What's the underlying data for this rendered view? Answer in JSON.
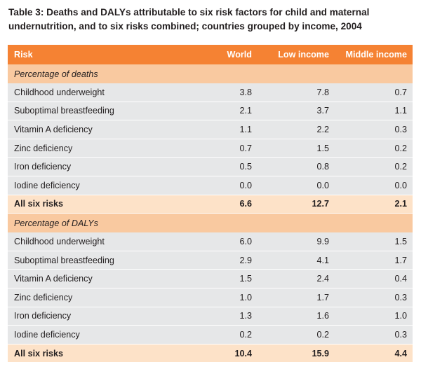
{
  "title": "Table 3: Deaths and DALYs attributable to six risk factors for child and maternal undernutrition, and to six risks combined; countries grouped by income, 2004",
  "columns": [
    "Risk",
    "World",
    "Low income",
    "Middle income"
  ],
  "sections": [
    {
      "label": "Percentage of deaths",
      "rows": [
        {
          "risk": "Childhood underweight",
          "world": "3.8",
          "low": "7.8",
          "middle": "0.7"
        },
        {
          "risk": "Suboptimal breastfeeding",
          "world": "2.1",
          "low": "3.7",
          "middle": "1.1"
        },
        {
          "risk": "Vitamin A deficiency",
          "world": "1.1",
          "low": "2.2",
          "middle": "0.3"
        },
        {
          "risk": "Zinc deficiency",
          "world": "0.7",
          "low": "1.5",
          "middle": "0.2"
        },
        {
          "risk": "Iron deficiency",
          "world": "0.5",
          "low": "0.8",
          "middle": "0.2"
        },
        {
          "risk": "Iodine deficiency",
          "world": "0.0",
          "low": "0.0",
          "middle": "0.0"
        }
      ],
      "total": {
        "risk": "All six risks",
        "world": "6.6",
        "low": "12.7",
        "middle": "2.1"
      }
    },
    {
      "label": "Percentage of DALYs",
      "rows": [
        {
          "risk": "Childhood underweight",
          "world": "6.0",
          "low": "9.9",
          "middle": "1.5"
        },
        {
          "risk": "Suboptimal breastfeeding",
          "world": "2.9",
          "low": "4.1",
          "middle": "1.7"
        },
        {
          "risk": "Vitamin A deficiency",
          "world": "1.5",
          "low": "2.4",
          "middle": "0.4"
        },
        {
          "risk": "Zinc deficiency",
          "world": "1.0",
          "low": "1.7",
          "middle": "0.3"
        },
        {
          "risk": "Iron deficiency",
          "world": "1.3",
          "low": "1.6",
          "middle": "1.0"
        },
        {
          "risk": "Iodine deficiency",
          "world": "0.2",
          "low": "0.2",
          "middle": "0.3"
        }
      ],
      "total": {
        "risk": "All six risks",
        "world": "10.4",
        "low": "15.9",
        "middle": "4.4"
      }
    }
  ],
  "colors": {
    "header": "#f58233",
    "section": "#f9c9a0",
    "row": "#e6e7e8",
    "total": "#fde2c8"
  }
}
